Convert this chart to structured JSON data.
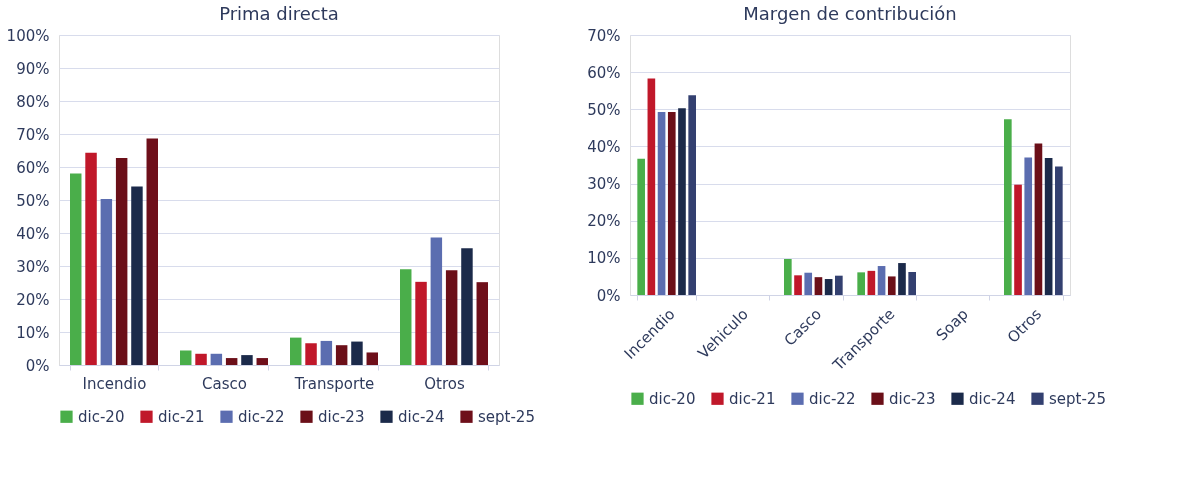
{
  "chart_data": [
    {
      "type": "bar",
      "title": "Prima directa",
      "categories": [
        "Incendio",
        "Casco",
        "Transporte",
        "Otros"
      ],
      "series": [
        {
          "name": "dic-20",
          "color": "#4aae4a",
          "values": [
            58,
            4.4,
            8.3,
            29
          ]
        },
        {
          "name": "dic-21",
          "color": "#c0182a",
          "values": [
            64.3,
            3.4,
            6.6,
            25.2
          ]
        },
        {
          "name": "dic-22",
          "color": "#5b6db0",
          "values": [
            50.3,
            3.4,
            7.3,
            38.6
          ]
        },
        {
          "name": "dic-23",
          "color": "#6b0f18",
          "values": [
            62.7,
            2.1,
            6.0,
            28.7
          ]
        },
        {
          "name": "dic-24",
          "color": "#1b2a4a",
          "values": [
            54.1,
            3.0,
            7.1,
            35.4
          ]
        },
        {
          "name": "sept-25",
          "color": "#6e0f1a",
          "values": [
            68.6,
            2.1,
            3.8,
            25.1
          ]
        }
      ],
      "ylim": [
        0,
        100
      ],
      "yticks": [
        {
          "value": 0,
          "label": "0%"
        },
        {
          "value": 10,
          "label": "10%"
        },
        {
          "value": 20,
          "label": "20%"
        },
        {
          "value": 30,
          "label": "30%"
        },
        {
          "value": 40,
          "label": "40%"
        },
        {
          "value": 50,
          "label": "50%"
        },
        {
          "value": 60,
          "label": "60%"
        },
        {
          "value": 70,
          "label": "70%"
        },
        {
          "value": 80,
          "label": "80%"
        },
        {
          "value": 90,
          "label": "90%"
        },
        {
          "value": 100,
          "label": "100%"
        }
      ],
      "grid": "y",
      "legend": "bottom"
    },
    {
      "type": "bar",
      "title": "Margen de contribución",
      "categories": [
        "Incendio",
        "Vehiculo",
        "Casco",
        "Transporte",
        "Soap",
        "Otros"
      ],
      "series": [
        {
          "name": "dic-20",
          "color": "#4aae4a",
          "values": [
            36.7,
            null,
            9.7,
            6.1,
            null,
            47.3
          ]
        },
        {
          "name": "dic-21",
          "color": "#c0182a",
          "values": [
            58.3,
            null,
            5.3,
            6.5,
            null,
            29.7
          ]
        },
        {
          "name": "dic-22",
          "color": "#5b6db0",
          "values": [
            49.3,
            null,
            6.0,
            7.8,
            null,
            37.0
          ]
        },
        {
          "name": "dic-23",
          "color": "#6b0f18",
          "values": [
            49.3,
            null,
            4.8,
            5.0,
            null,
            40.8
          ]
        },
        {
          "name": "dic-24",
          "color": "#1b2a4a",
          "values": [
            50.3,
            null,
            4.3,
            8.6,
            null,
            36.9
          ]
        },
        {
          "name": "sept-25",
          "color": "#334070",
          "values": [
            53.8,
            null,
            5.2,
            6.2,
            null,
            34.6
          ]
        }
      ],
      "ylim": [
        0,
        70
      ],
      "yticks": [
        {
          "value": 0,
          "label": "0%"
        },
        {
          "value": 10,
          "label": "10%"
        },
        {
          "value": 20,
          "label": "20%"
        },
        {
          "value": 30,
          "label": "30%"
        },
        {
          "value": 40,
          "label": "40%"
        },
        {
          "value": 50,
          "label": "50%"
        },
        {
          "value": 60,
          "label": "60%"
        },
        {
          "value": 70,
          "label": "70%"
        }
      ],
      "grid": "y",
      "legend": "bottom"
    }
  ]
}
